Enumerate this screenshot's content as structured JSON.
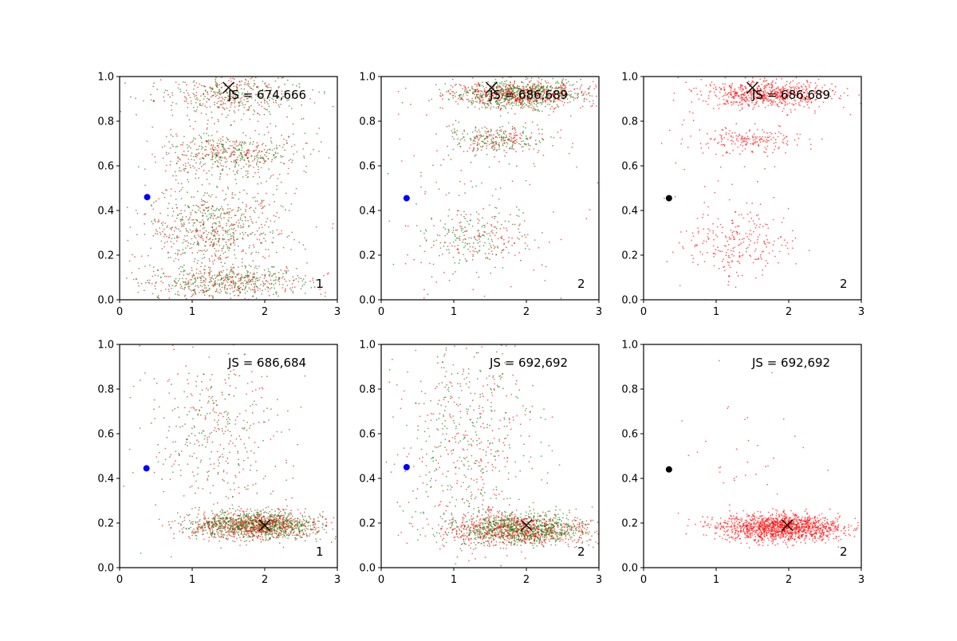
{
  "chart_data": [
    {
      "type": "scatter",
      "annotation": "JS = 674,666",
      "corner_label": "1",
      "xlim": [
        0,
        3
      ],
      "ylim": [
        0,
        1
      ],
      "xticks": [
        "0",
        "1",
        "2",
        "3"
      ],
      "yticks": [
        "0.0",
        "0.2",
        "0.4",
        "0.6",
        "0.8",
        "1.0"
      ],
      "x_marker": {
        "x": 1.5,
        "y": 0.95,
        "color": "#000000"
      },
      "dot": {
        "x": 0.38,
        "y": 0.46,
        "color": "#0000ff"
      },
      "clusters": [
        {
          "cx": 1.5,
          "cy": 0.92,
          "sx": 0.5,
          "sy": 0.05,
          "n": 450
        },
        {
          "cx": 1.5,
          "cy": 0.65,
          "sx": 0.5,
          "sy": 0.05,
          "n": 500
        },
        {
          "cx": 1.3,
          "cy": 0.32,
          "sx": 0.45,
          "sy": 0.09,
          "n": 650
        },
        {
          "cx": 1.5,
          "cy": 0.08,
          "sx": 0.55,
          "sy": 0.04,
          "n": 600
        },
        {
          "cx": 1.5,
          "cy": 0.5,
          "sx": 0.9,
          "sy": 0.35,
          "n": 120
        }
      ],
      "colors": [
        "#ff0000",
        "#008000",
        "#6b4400"
      ]
    },
    {
      "type": "scatter",
      "annotation": "JS = 686,689",
      "corner_label": "2",
      "xlim": [
        0,
        3
      ],
      "ylim": [
        0,
        1
      ],
      "xticks": [
        "0",
        "1",
        "2",
        "3"
      ],
      "yticks": [
        "0.0",
        "0.2",
        "0.4",
        "0.6",
        "0.8",
        "1.0"
      ],
      "x_marker": {
        "x": 1.52,
        "y": 0.95,
        "color": "#000000"
      },
      "dot": {
        "x": 0.35,
        "y": 0.455,
        "color": "#0000ff"
      },
      "clusters": [
        {
          "cx": 1.9,
          "cy": 0.92,
          "sx": 0.45,
          "sy": 0.03,
          "n": 1100
        },
        {
          "cx": 1.6,
          "cy": 0.72,
          "sx": 0.35,
          "sy": 0.03,
          "n": 300
        },
        {
          "cx": 1.3,
          "cy": 0.27,
          "sx": 0.35,
          "sy": 0.06,
          "n": 250
        },
        {
          "cx": 1.3,
          "cy": 0.5,
          "sx": 0.7,
          "sy": 0.3,
          "n": 150
        }
      ],
      "colors": [
        "#ff0000",
        "#008000"
      ]
    },
    {
      "type": "scatter",
      "annotation": "JS = 686,689",
      "corner_label": "2",
      "xlim": [
        0,
        3
      ],
      "ylim": [
        0,
        1
      ],
      "xticks": [
        "0",
        "1",
        "2",
        "3"
      ],
      "yticks": [
        "0.0",
        "0.2",
        "0.4",
        "0.6",
        "0.8",
        "1.0"
      ],
      "x_marker": {
        "x": 1.5,
        "y": 0.95,
        "color": "#000000"
      },
      "dot": {
        "x": 0.35,
        "y": 0.455,
        "color": "#000000"
      },
      "clusters": [
        {
          "cx": 1.7,
          "cy": 0.92,
          "sx": 0.45,
          "sy": 0.03,
          "n": 650
        },
        {
          "cx": 1.5,
          "cy": 0.71,
          "sx": 0.35,
          "sy": 0.03,
          "n": 180
        },
        {
          "cx": 1.3,
          "cy": 0.26,
          "sx": 0.35,
          "sy": 0.07,
          "n": 220
        },
        {
          "cx": 1.1,
          "cy": 0.5,
          "sx": 0.5,
          "sy": 0.3,
          "n": 60
        }
      ],
      "colors": [
        "#ff0000"
      ]
    },
    {
      "type": "scatter",
      "annotation": "JS = 686,684",
      "corner_label": "1",
      "xlim": [
        0,
        3
      ],
      "ylim": [
        0,
        1
      ],
      "xticks": [
        "0",
        "1",
        "2",
        "3"
      ],
      "yticks": [
        "0.0",
        "0.2",
        "0.4",
        "0.6",
        "0.8",
        "1.0"
      ],
      "x_marker": {
        "x": 2.0,
        "y": 0.19,
        "color": "#000000"
      },
      "dot": {
        "x": 0.37,
        "y": 0.445,
        "color": "#0000ff"
      },
      "clusters": [
        {
          "cx": 1.9,
          "cy": 0.19,
          "sx": 0.45,
          "sy": 0.03,
          "n": 1500
        },
        {
          "cx": 1.3,
          "cy": 0.6,
          "sx": 0.45,
          "sy": 0.2,
          "n": 400
        }
      ],
      "colors": [
        "#ff0000",
        "#008000",
        "#6b4400"
      ]
    },
    {
      "type": "scatter",
      "annotation": "JS = 692,692",
      "corner_label": "2",
      "xlim": [
        0,
        3
      ],
      "ylim": [
        0,
        1
      ],
      "xticks": [
        "0",
        "1",
        "2",
        "3"
      ],
      "yticks": [
        "0.0",
        "0.2",
        "0.4",
        "0.6",
        "0.8",
        "1.0"
      ],
      "x_marker": {
        "x": 2.0,
        "y": 0.19,
        "color": "#000000"
      },
      "dot": {
        "x": 0.35,
        "y": 0.45,
        "color": "#0000ff"
      },
      "clusters": [
        {
          "cx": 1.9,
          "cy": 0.17,
          "sx": 0.5,
          "sy": 0.035,
          "n": 1500
        },
        {
          "cx": 1.2,
          "cy": 0.55,
          "sx": 0.45,
          "sy": 0.25,
          "n": 600
        }
      ],
      "colors": [
        "#ff0000",
        "#008000"
      ]
    },
    {
      "type": "scatter",
      "annotation": "JS = 692,692",
      "corner_label": "2",
      "xlim": [
        0,
        3
      ],
      "ylim": [
        0,
        1
      ],
      "xticks": [
        "0",
        "1",
        "2",
        "3"
      ],
      "yticks": [
        "0.0",
        "0.2",
        "0.4",
        "0.6",
        "0.8",
        "1.0"
      ],
      "x_marker": {
        "x": 1.98,
        "y": 0.19,
        "color": "#000000"
      },
      "dot": {
        "x": 0.35,
        "y": 0.44,
        "color": "#000000"
      },
      "clusters": [
        {
          "cx": 1.9,
          "cy": 0.18,
          "sx": 0.42,
          "sy": 0.03,
          "n": 1400
        },
        {
          "cx": 1.3,
          "cy": 0.5,
          "sx": 0.5,
          "sy": 0.25,
          "n": 40
        }
      ],
      "colors": [
        "#ff0000"
      ]
    }
  ]
}
